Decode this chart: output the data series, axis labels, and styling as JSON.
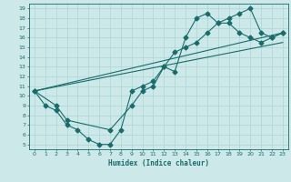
{
  "xlabel": "Humidex (Indice chaleur)",
  "bg_color": "#cce8e8",
  "line_color": "#1a6b6b",
  "grid_color": "#aad4d4",
  "xlim": [
    -0.5,
    23.5
  ],
  "ylim": [
    4.5,
    19.5
  ],
  "xticks": [
    0,
    1,
    2,
    3,
    4,
    5,
    6,
    7,
    8,
    9,
    10,
    11,
    12,
    13,
    14,
    15,
    16,
    17,
    18,
    19,
    20,
    21,
    22,
    23
  ],
  "yticks": [
    5,
    6,
    7,
    8,
    9,
    10,
    11,
    12,
    13,
    14,
    15,
    16,
    17,
    18,
    19
  ],
  "curve1_x": [
    0,
    1,
    2,
    3,
    4,
    5,
    6,
    7,
    8,
    9,
    10,
    11,
    12,
    13,
    14,
    15,
    16,
    17,
    18,
    19,
    20,
    21,
    22,
    23
  ],
  "curve1_y": [
    10.5,
    9.0,
    8.5,
    7.0,
    6.5,
    5.5,
    5.0,
    5.0,
    6.5,
    10.5,
    11.0,
    11.5,
    13.0,
    12.5,
    16.0,
    18.0,
    18.5,
    17.5,
    17.5,
    16.5,
    16.0,
    15.5,
    16.0,
    16.5
  ],
  "curve2_x": [
    0,
    2,
    3,
    7,
    9,
    10,
    11,
    12,
    13,
    14,
    15,
    16,
    17,
    18,
    19,
    20,
    21,
    22,
    23
  ],
  "curve2_y": [
    10.5,
    9.0,
    7.5,
    6.5,
    9.0,
    10.5,
    11.0,
    13.0,
    14.5,
    15.0,
    15.5,
    16.5,
    17.5,
    18.0,
    18.5,
    19.0,
    16.5,
    16.0,
    16.5
  ],
  "curve3_x": [
    0,
    23
  ],
  "curve3_y": [
    10.5,
    16.5
  ],
  "curve4_x": [
    0,
    23
  ],
  "curve4_y": [
    10.5,
    15.5
  ]
}
